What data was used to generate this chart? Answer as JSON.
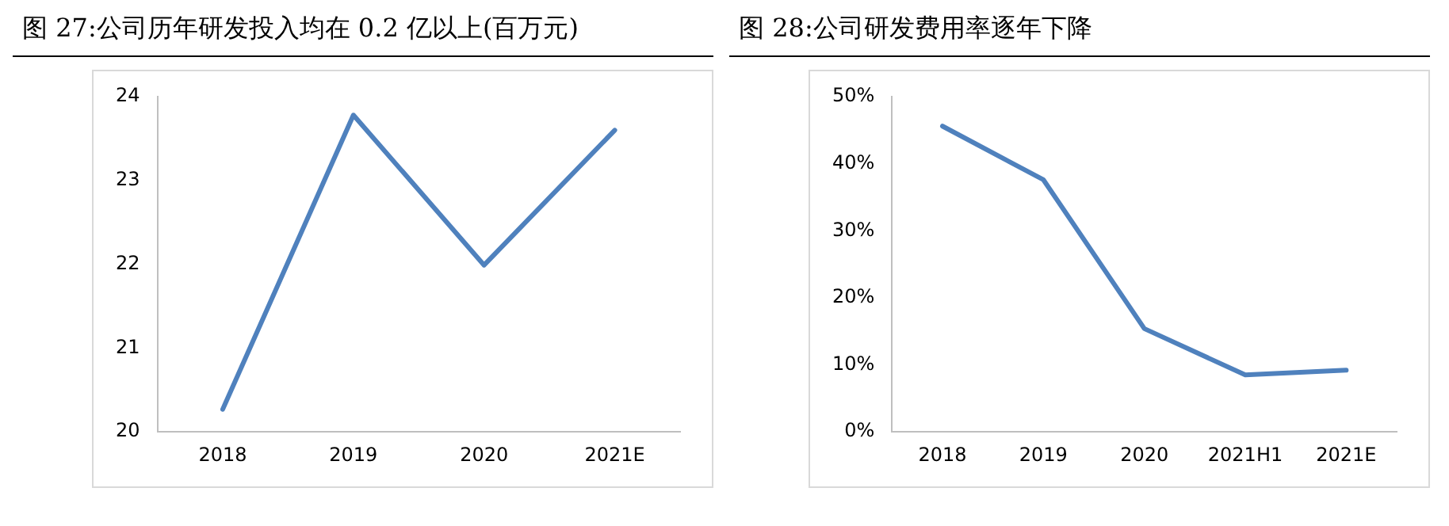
{
  "chart_data": [
    {
      "type": "line",
      "title": "图 27:公司历年研发投入均在 0.2 亿以上(百万元)",
      "categories": [
        "2018",
        "2019",
        "2020",
        "2021E"
      ],
      "series": [
        {
          "color": "#4f81bd",
          "values": [
            20.27,
            23.78,
            21.99,
            23.6
          ]
        }
      ],
      "ylim": [
        20,
        24
      ],
      "yticks": [
        20,
        21,
        22,
        23,
        24
      ],
      "grid": false,
      "legend": false,
      "marker": "none",
      "line_style": "solid"
    },
    {
      "type": "line",
      "title": "图 28:公司研发费用率逐年下降",
      "categories": [
        "2018",
        "2019",
        "2020",
        "2021H1",
        "2021E"
      ],
      "series": [
        {
          "color": "#4f81bd",
          "values": [
            45.6,
            37.6,
            15.4,
            8.5,
            9.2
          ]
        }
      ],
      "ylim": [
        0,
        50
      ],
      "yticks": [
        {
          "value": 0,
          "label": "0%"
        },
        {
          "value": 10,
          "label": "10%"
        },
        {
          "value": 20,
          "label": "20%"
        },
        {
          "value": 30,
          "label": "30%"
        },
        {
          "value": 40,
          "label": "40%"
        },
        {
          "value": 50,
          "label": "50%"
        }
      ],
      "grid": false,
      "legend": false,
      "marker": "none",
      "line_style": "solid"
    }
  ]
}
